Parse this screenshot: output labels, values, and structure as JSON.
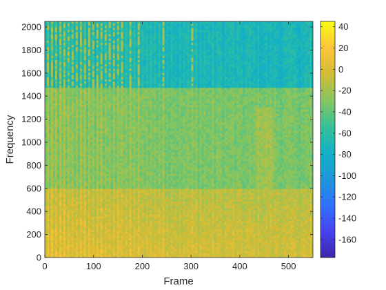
{
  "chart_data": {
    "type": "heatmap",
    "title": "",
    "xlabel": "Frame",
    "ylabel": "Frequency",
    "xlim": [
      0,
      550
    ],
    "ylim": [
      0,
      2048
    ],
    "x_ticks": [
      0,
      100,
      200,
      300,
      400,
      500
    ],
    "y_ticks": [
      0,
      200,
      400,
      600,
      800,
      1000,
      1200,
      1400,
      1600,
      1800,
      2000
    ],
    "colorbar": {
      "limits": [
        -177,
        45
      ],
      "ticks": [
        40,
        20,
        0,
        -20,
        -40,
        -60,
        -80,
        -100,
        -120,
        -140,
        -160
      ],
      "colormap": "parula",
      "colors": [
        "#3e26a8",
        "#4743f0",
        "#2f72fa",
        "#1e97db",
        "#12b1c4",
        "#37c098",
        "#87c55f",
        "#d3bc36",
        "#fec539",
        "#f9fb15"
      ]
    },
    "regions": [
      {
        "freq_range": [
          1480,
          2048
        ],
        "typical_level": -75
      },
      {
        "freq_range": [
          600,
          1480
        ],
        "typical_level": -35
      },
      {
        "freq_range": [
          0,
          600
        ],
        "typical_level": -15
      }
    ],
    "grid": false
  }
}
